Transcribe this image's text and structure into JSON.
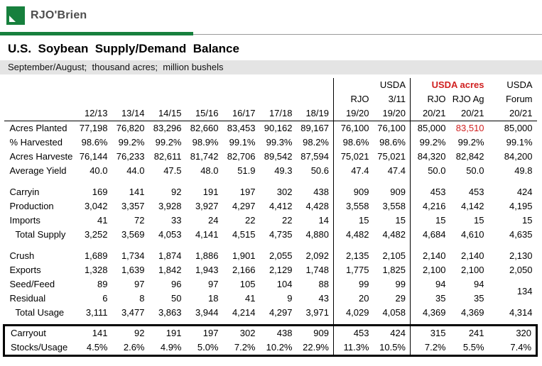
{
  "brand": {
    "logo_text": "RJO'Brien",
    "logo_icon": "rjobrien-green-square"
  },
  "page": {
    "title": "U.S.  Soybean  Supply/Demand  Balance",
    "subtitle": "September/August;  thousand acres;  million bushels"
  },
  "colors": {
    "brand_green": "#17803d",
    "accent_red": "#d02020",
    "subtitle_bg": "#e4e4e4"
  },
  "table": {
    "header": {
      "row1": {
        "usda_mid": "USDA",
        "usda_acres": "USDA acres",
        "usda_right": "USDA"
      },
      "row2": [
        "RJO",
        "3/11",
        "RJO",
        "RJO Ag",
        "Forum"
      ],
      "years": [
        "12/13",
        "13/14",
        "14/15",
        "15/16",
        "16/17",
        "17/18",
        "18/19",
        "19/20",
        "19/20",
        "20/21",
        "20/21",
        "20/21"
      ]
    },
    "rows": [
      {
        "label": "Acres Planted",
        "values": [
          "77,198",
          "76,820",
          "83,296",
          "82,660",
          "83,453",
          "90,162",
          "89,167",
          "76,100",
          "76,100",
          "85,000",
          "83,510",
          "85,000"
        ],
        "red": [
          10
        ]
      },
      {
        "label": "% Harvested",
        "values": [
          "98.6%",
          "99.2%",
          "99.2%",
          "98.9%",
          "99.1%",
          "99.3%",
          "98.2%",
          "98.6%",
          "98.6%",
          "99.2%",
          "99.2%",
          "99.1%"
        ]
      },
      {
        "label": "Acres Harveste",
        "values": [
          "76,144",
          "76,233",
          "82,611",
          "81,742",
          "82,706",
          "89,542",
          "87,594",
          "75,021",
          "75,021",
          "84,320",
          "82,842",
          "84,200"
        ]
      },
      {
        "label": "Average Yield",
        "values": [
          "40.0",
          "44.0",
          "47.5",
          "48.0",
          "51.9",
          "49.3",
          "50.6",
          "47.4",
          "47.4",
          "50.0",
          "50.0",
          "49.8"
        ]
      },
      {
        "spacer": true
      },
      {
        "label": "Carryin",
        "values": [
          "169",
          "141",
          "92",
          "191",
          "197",
          "302",
          "438",
          "909",
          "909",
          "453",
          "453",
          "424"
        ]
      },
      {
        "label": "Production",
        "values": [
          "3,042",
          "3,357",
          "3,928",
          "3,927",
          "4,297",
          "4,412",
          "4,428",
          "3,558",
          "3,558",
          "4,216",
          "4,142",
          "4,195"
        ]
      },
      {
        "label": "Imports",
        "values": [
          "41",
          "72",
          "33",
          "24",
          "22",
          "22",
          "14",
          "15",
          "15",
          "15",
          "15",
          "15"
        ]
      },
      {
        "label": "Total Supply",
        "indent": true,
        "values": [
          "3,252",
          "3,569",
          "4,053",
          "4,141",
          "4,515",
          "4,735",
          "4,880",
          "4,482",
          "4,482",
          "4,684",
          "4,610",
          "4,635"
        ]
      },
      {
        "spacer": true
      },
      {
        "label": "Crush",
        "values": [
          "1,689",
          "1,734",
          "1,874",
          "1,886",
          "1,901",
          "2,055",
          "2,092",
          "2,135",
          "2,105",
          "2,140",
          "2,140",
          "2,130"
        ]
      },
      {
        "label": "Exports",
        "values": [
          "1,328",
          "1,639",
          "1,842",
          "1,943",
          "2,166",
          "2,129",
          "1,748",
          "1,775",
          "1,825",
          "2,100",
          "2,100",
          "2,050"
        ]
      },
      {
        "label": "Seed/Feed",
        "values": [
          "89",
          "97",
          "96",
          "97",
          "105",
          "104",
          "88",
          "99",
          "99",
          "94",
          "94"
        ],
        "merge_last": {
          "value": "134",
          "rowspan": 2
        }
      },
      {
        "label": "Residual",
        "values": [
          "6",
          "8",
          "50",
          "18",
          "41",
          "9",
          "43",
          "20",
          "29",
          "35",
          "35"
        ]
      },
      {
        "label": "Total Usage",
        "indent": true,
        "values": [
          "3,111",
          "3,477",
          "3,863",
          "3,944",
          "4,214",
          "4,297",
          "3,971",
          "4,029",
          "4,058",
          "4,369",
          "4,369",
          "4,314"
        ]
      },
      {
        "spacer": true,
        "small": true
      }
    ],
    "box_rows": [
      {
        "label": "Carryout",
        "values": [
          "141",
          "92",
          "191",
          "197",
          "302",
          "438",
          "909",
          "453",
          "424",
          "315",
          "241",
          "320"
        ]
      },
      {
        "label": "Stocks/Usage",
        "values": [
          "4.5%",
          "2.6%",
          "4.9%",
          "5.0%",
          "7.2%",
          "10.2%",
          "22.9%",
          "11.3%",
          "10.5%",
          "7.2%",
          "5.5%",
          "7.4%"
        ]
      }
    ]
  }
}
